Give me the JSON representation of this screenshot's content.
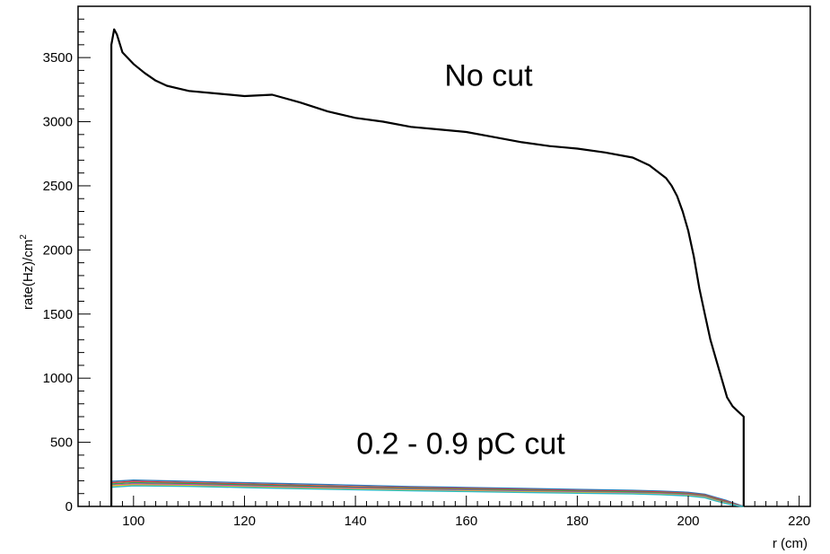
{
  "chart_data": {
    "type": "line",
    "title": "",
    "xlabel": "r (cm)",
    "ylabel": "rate(Hz)/cm",
    "ylabel_superscript": "2",
    "xlim": [
      90,
      222
    ],
    "ylim": [
      0,
      3900
    ],
    "x_ticks": [
      100,
      120,
      140,
      160,
      180,
      200,
      220
    ],
    "y_ticks": [
      0,
      500,
      1000,
      1500,
      2000,
      2500,
      3000,
      3500
    ],
    "grid": false,
    "annotations": [
      {
        "text": "No cut",
        "x": 164,
        "y": 3280
      },
      {
        "text": "0.2 - 0.9 pC cut",
        "x": 159,
        "y": 410
      }
    ],
    "series": [
      {
        "color": "#000000",
        "x": [
          96,
          96.5,
          97,
          98,
          100,
          102,
          104,
          106,
          108,
          110,
          115,
          120,
          125,
          130,
          135,
          140,
          145,
          150,
          155,
          160,
          165,
          170,
          175,
          180,
          185,
          190,
          193,
          196,
          197,
          198,
          199,
          200,
          201,
          202,
          203,
          204,
          205,
          206,
          207,
          208,
          209,
          210
        ],
        "y": [
          3600,
          3720,
          3680,
          3540,
          3450,
          3380,
          3320,
          3280,
          3260,
          3240,
          3220,
          3200,
          3210,
          3150,
          3080,
          3030,
          3000,
          2960,
          2940,
          2920,
          2880,
          2840,
          2810,
          2790,
          2760,
          2720,
          2660,
          2560,
          2500,
          2420,
          2300,
          2150,
          1950,
          1700,
          1500,
          1300,
          1150,
          1000,
          850,
          780,
          740,
          700
        ]
      },
      {
        "color": "#2a7ab8",
        "x": [
          96,
          100,
          110,
          120,
          130,
          140,
          150,
          160,
          170,
          180,
          190,
          195,
          200,
          203,
          205,
          207,
          209,
          210
        ],
        "y": [
          195,
          205,
          195,
          185,
          175,
          165,
          155,
          148,
          140,
          132,
          125,
          120,
          110,
          95,
          70,
          45,
          15,
          0
        ]
      },
      {
        "color": "#e23c3c",
        "x": [
          96,
          100,
          110,
          120,
          130,
          140,
          150,
          160,
          170,
          180,
          190,
          195,
          200,
          203,
          205,
          207,
          209,
          210
        ],
        "y": [
          185,
          195,
          185,
          175,
          165,
          155,
          146,
          140,
          132,
          124,
          118,
          112,
          102,
          88,
          62,
          38,
          10,
          0
        ]
      },
      {
        "color": "#2ea84a",
        "x": [
          96,
          100,
          110,
          120,
          130,
          140,
          150,
          160,
          170,
          180,
          190,
          195,
          200,
          203,
          205,
          207,
          209,
          210
        ],
        "y": [
          175,
          185,
          178,
          168,
          158,
          148,
          140,
          133,
          126,
          118,
          112,
          106,
          96,
          82,
          56,
          32,
          8,
          0
        ]
      },
      {
        "color": "#b23cc8",
        "x": [
          96,
          100,
          110,
          120,
          130,
          140,
          150,
          160,
          170,
          180,
          190,
          195,
          200,
          203,
          205,
          207,
          209,
          210
        ],
        "y": [
          165,
          175,
          170,
          160,
          150,
          142,
          134,
          127,
          120,
          113,
          106,
          100,
          90,
          76,
          50,
          28,
          6,
          0
        ]
      },
      {
        "color": "#f0c020",
        "x": [
          96,
          100,
          110,
          120,
          130,
          140,
          150,
          160,
          170,
          180,
          190,
          195,
          200,
          203,
          205,
          207,
          209,
          210
        ],
        "y": [
          160,
          168,
          163,
          153,
          144,
          136,
          128,
          121,
          114,
          108,
          101,
          96,
          86,
          72,
          46,
          24,
          5,
          0
        ]
      },
      {
        "color": "#29b8c8",
        "x": [
          96,
          100,
          110,
          120,
          130,
          140,
          150,
          160,
          170,
          180,
          190,
          195,
          200,
          203,
          205,
          207,
          209,
          210
        ],
        "y": [
          150,
          160,
          156,
          147,
          138,
          130,
          122,
          116,
          109,
          103,
          97,
          92,
          82,
          68,
          42,
          20,
          4,
          0
        ]
      }
    ]
  }
}
